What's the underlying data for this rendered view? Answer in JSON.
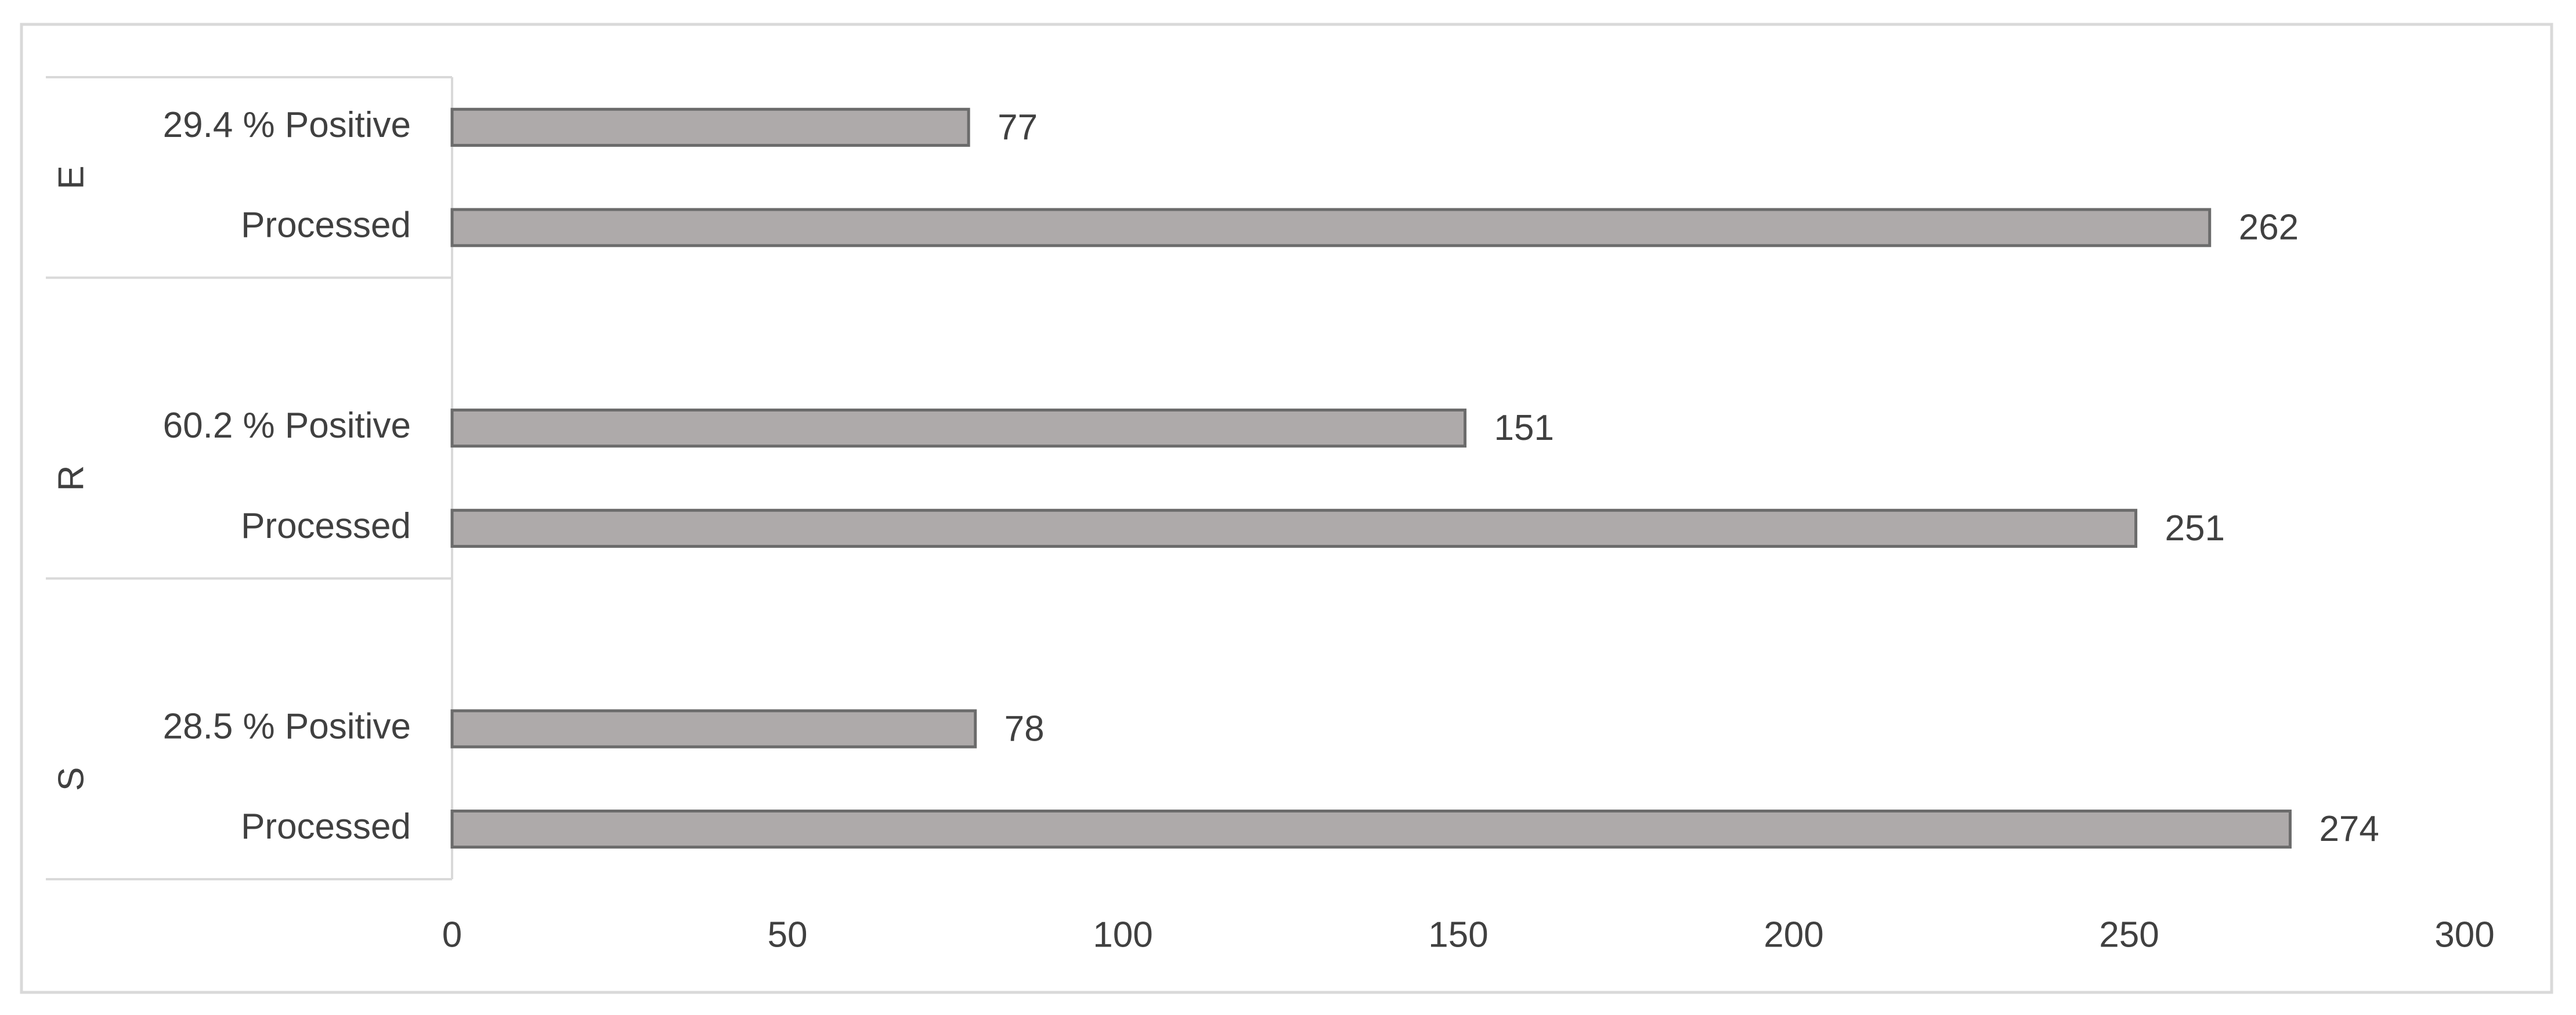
{
  "chart_data": {
    "type": "bar",
    "orientation": "horizontal",
    "groups": [
      "E",
      "R",
      "S"
    ],
    "categories": [
      "29.4 % Positive",
      "Processed",
      "60.2 % Positive",
      "Processed",
      "28.5 % Positive",
      "Processed"
    ],
    "values": [
      77,
      262,
      151,
      251,
      78,
      274
    ],
    "color": "#aeaaaa",
    "xlim": [
      0,
      300
    ],
    "xticks": [
      0,
      50,
      100,
      150,
      200,
      250,
      300
    ],
    "grid": false
  }
}
